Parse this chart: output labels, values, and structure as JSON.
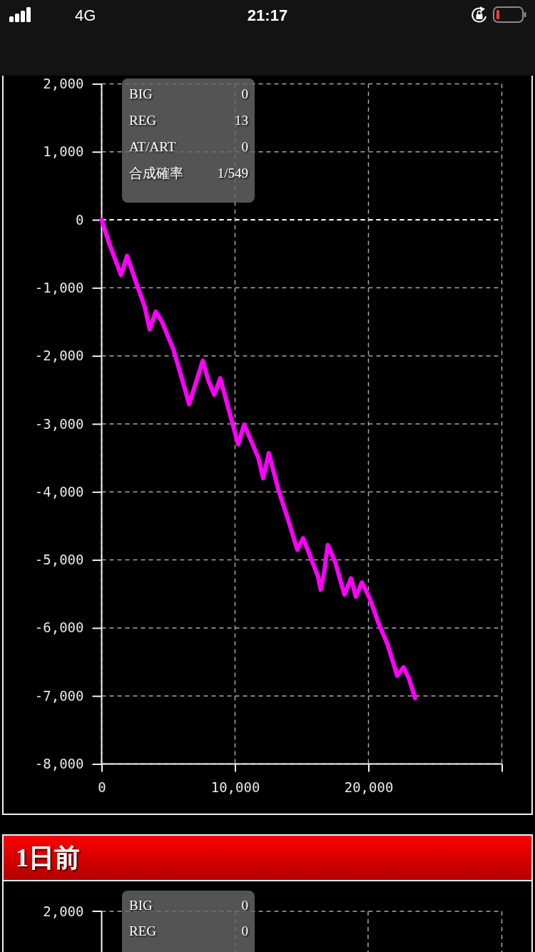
{
  "chart_data": [
    {
      "type": "line",
      "x": [
        0,
        550,
        1450,
        1900,
        2600,
        3230,
        3600,
        4050,
        4500,
        5390,
        6560,
        7580,
        7990,
        8440,
        8890,
        10230,
        10680,
        11750,
        12110,
        12530,
        13280,
        13900,
        14670,
        15100,
        16230,
        16420,
        16680,
        16950,
        17490,
        18200,
        18690,
        19050,
        19510,
        20080,
        20810,
        21430,
        22150,
        22630,
        23030,
        23490
      ],
      "values": [
        0,
        -340,
        -810,
        -530,
        -930,
        -1280,
        -1610,
        -1350,
        -1490,
        -1910,
        -2710,
        -2070,
        -2360,
        -2570,
        -2330,
        -3300,
        -3010,
        -3500,
        -3800,
        -3430,
        -3990,
        -4360,
        -4850,
        -4680,
        -5250,
        -5440,
        -5180,
        -4780,
        -5020,
        -5510,
        -5270,
        -5540,
        -5330,
        -5560,
        -5960,
        -6240,
        -6700,
        -6580,
        -6740,
        -7030
      ],
      "color": "#ff00ff",
      "xlim": [
        0,
        30000
      ],
      "xticks": [
        0,
        {
          "value": 10000,
          "label": "10,000"
        },
        {
          "value": 20000,
          "label": "20,000"
        },
        {
          "value": 30000,
          "label": null
        }
      ],
      "ylim": [
        -8000,
        2000
      ],
      "yticks": [
        {
          "value": -8000,
          "label": "-8,000"
        },
        {
          "value": -7000,
          "label": "-7,000"
        },
        {
          "value": -6000,
          "label": "-6,000"
        },
        {
          "value": -5000,
          "label": "-5,000"
        },
        {
          "value": -4000,
          "label": "-4,000"
        },
        {
          "value": -3000,
          "label": "-3,000"
        },
        {
          "value": -2000,
          "label": "-2,000"
        },
        {
          "value": -1000,
          "label": "-1,000"
        },
        0,
        {
          "value": 1000,
          "label": "1,000"
        },
        {
          "value": 2000,
          "label": "2,000"
        }
      ],
      "grid": true,
      "ref_lines": [
        {
          "axis": "y",
          "value": 0,
          "color": "#ffffff",
          "line_style": "dashed"
        }
      ],
      "annotations": [
        "4G",
        "21:17",
        "BIG",
        "0",
        "REG",
        "13",
        "AT/ART",
        "0",
        "合成確率",
        "1/549"
      ]
    },
    {
      "type": "other",
      "title": "1日前",
      "annotations": [
        "2,000",
        "BIG",
        "0",
        "REG",
        "0"
      ]
    }
  ]
}
